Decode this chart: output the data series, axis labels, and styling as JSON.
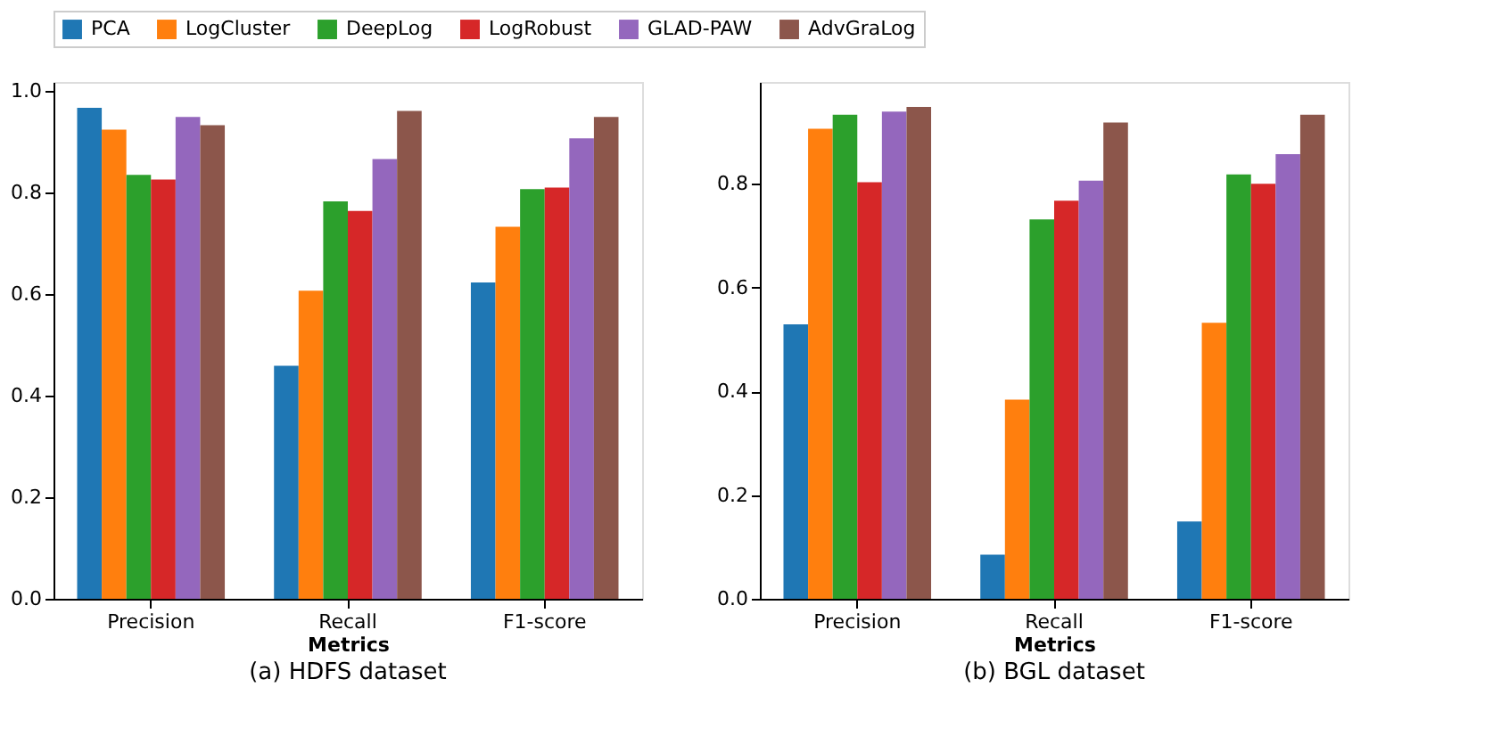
{
  "chart_data": [
    {
      "type": "bar",
      "title": "(a) HDFS dataset",
      "xlabel": "Metrics",
      "categories": [
        "Precision",
        "Recall",
        "F1-score"
      ],
      "ylim": [
        0,
        1.018
      ],
      "yticks": [
        {
          "value": 0,
          "label": "0.0"
        },
        {
          "value": 0.2,
          "label": "0.2"
        },
        {
          "value": 0.4,
          "label": "0.4"
        },
        {
          "value": 0.6,
          "label": "0.6"
        },
        {
          "value": 0.8,
          "label": "0.8"
        },
        {
          "value": 1.0,
          "label": "1.0"
        }
      ],
      "legend": "top",
      "grid": false,
      "series": [
        {
          "name": "PCA",
          "color": "#1f77b4",
          "values": [
            0.967,
            0.459,
            0.623
          ]
        },
        {
          "name": "LogCluster",
          "color": "#ff7f0e",
          "values": [
            0.924,
            0.607,
            0.733
          ]
        },
        {
          "name": "DeepLog",
          "color": "#2ca02c",
          "values": [
            0.835,
            0.783,
            0.807
          ]
        },
        {
          "name": "LogRobust",
          "color": "#d62728",
          "values": [
            0.826,
            0.764,
            0.81
          ]
        },
        {
          "name": "GLAD-PAW",
          "color": "#9467bd",
          "values": [
            0.949,
            0.866,
            0.907
          ]
        },
        {
          "name": "AdvGraLog",
          "color": "#8c564b",
          "values": [
            0.933,
            0.961,
            0.949
          ]
        }
      ]
    },
    {
      "type": "bar",
      "title": "(b) BGL dataset",
      "xlabel": "Metrics",
      "categories": [
        "Precision",
        "Recall",
        "F1-score"
      ],
      "ylim": [
        0,
        0.996
      ],
      "yticks": [
        {
          "value": 0,
          "label": "0.0"
        },
        {
          "value": 0.2,
          "label": "0.2"
        },
        {
          "value": 0.4,
          "label": "0.4"
        },
        {
          "value": 0.6,
          "label": "0.6"
        },
        {
          "value": 0.8,
          "label": "0.8"
        }
      ],
      "legend": "top",
      "grid": false,
      "series": [
        {
          "name": "PCA",
          "color": "#1f77b4",
          "values": [
            0.529,
            0.085,
            0.149
          ]
        },
        {
          "name": "LogCluster",
          "color": "#ff7f0e",
          "values": [
            0.906,
            0.384,
            0.532
          ]
        },
        {
          "name": "DeepLog",
          "color": "#2ca02c",
          "values": [
            0.933,
            0.731,
            0.818
          ]
        },
        {
          "name": "LogRobust",
          "color": "#d62728",
          "values": [
            0.803,
            0.767,
            0.8
          ]
        },
        {
          "name": "GLAD-PAW",
          "color": "#9467bd",
          "values": [
            0.939,
            0.806,
            0.857
          ]
        },
        {
          "name": "AdvGraLog",
          "color": "#8c564b",
          "values": [
            0.948,
            0.918,
            0.933
          ]
        }
      ]
    }
  ]
}
